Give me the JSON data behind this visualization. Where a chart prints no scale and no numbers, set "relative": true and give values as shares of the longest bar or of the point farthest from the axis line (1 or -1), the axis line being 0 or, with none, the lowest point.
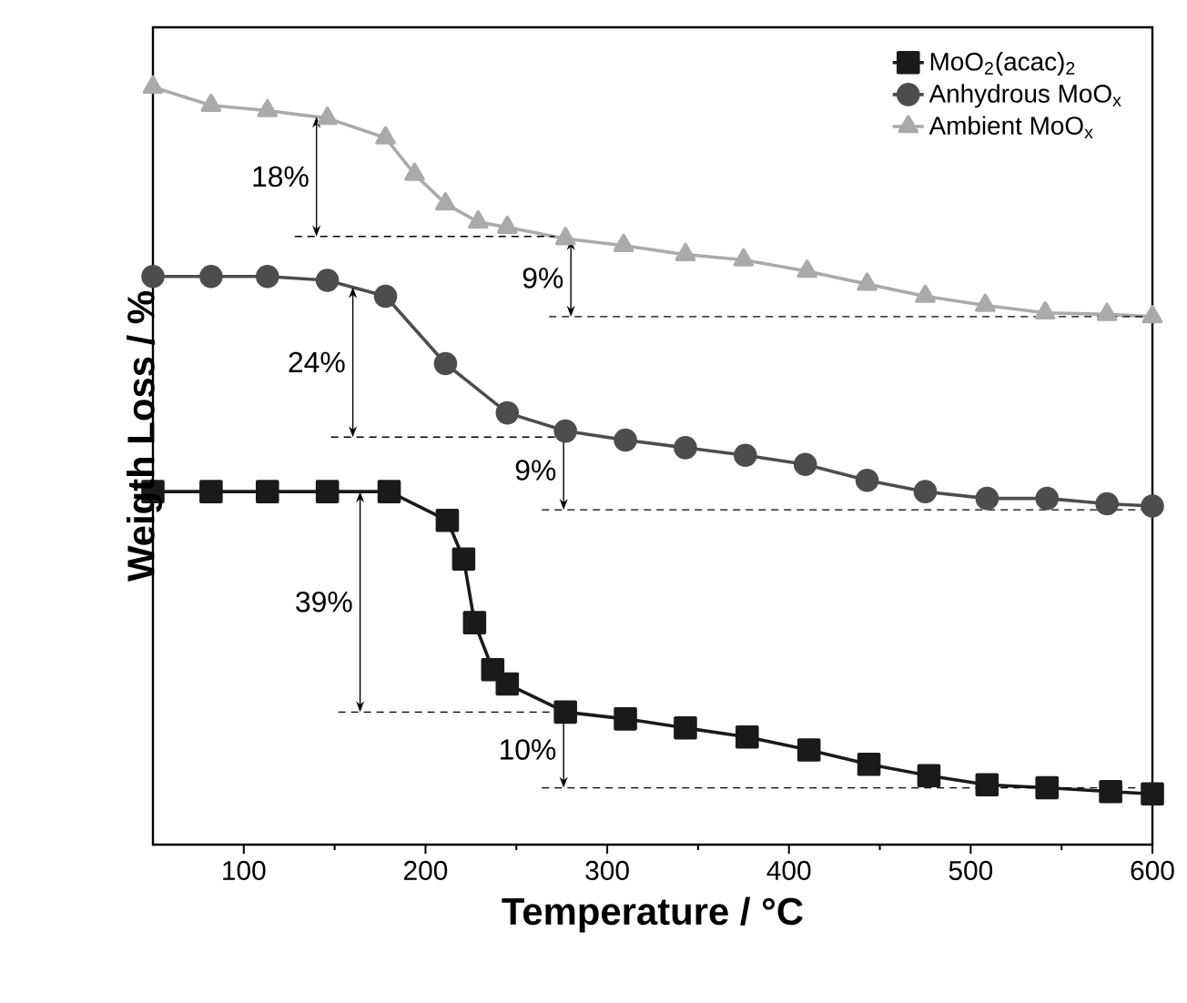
{
  "chart_data": {
    "type": "line",
    "relative": true,
    "xlabel": "Temperature / °C",
    "ylabel": "Weigth Loss / %",
    "xlim": [
      50,
      600
    ],
    "xticks": [
      100,
      200,
      300,
      400,
      500,
      600
    ],
    "legend": "top right",
    "grid": false,
    "series": [
      {
        "name": "MoO$_{2}$(acac)$_{2}$",
        "color": "#1a1a1a",
        "marker": "square",
        "line_style": "solid",
        "x": [
          50,
          82,
          113,
          146,
          180,
          212,
          221,
          227,
          237,
          245,
          277,
          310,
          343,
          377,
          411,
          444,
          477,
          509,
          542,
          577,
          600
        ],
        "values": [
          0.466,
          0.466,
          0.466,
          0.466,
          0.466,
          0.428,
          0.377,
          0.293,
          0.231,
          0.212,
          0.175,
          0.166,
          0.154,
          0.142,
          0.125,
          0.106,
          0.091,
          0.079,
          0.075,
          0.07,
          0.067
        ]
      },
      {
        "name": "Anhydrous MoO$_{x}$",
        "color": "#4d4d4d",
        "marker": "circle",
        "line_style": "solid",
        "x": [
          50,
          82,
          113,
          146,
          178,
          211,
          245,
          277,
          310,
          343,
          376,
          409,
          443,
          475,
          509,
          542,
          575,
          600
        ],
        "values": [
          0.75,
          0.75,
          0.75,
          0.745,
          0.724,
          0.635,
          0.57,
          0.546,
          0.534,
          0.524,
          0.514,
          0.502,
          0.481,
          0.466,
          0.457,
          0.457,
          0.45,
          0.447
        ]
      },
      {
        "name": "Ambient MoO$_{x}$",
        "color": "#aaaaaa",
        "marker": "triangle",
        "line_style": "solid",
        "x": [
          50,
          82,
          113,
          146,
          178,
          194,
          211,
          229,
          245,
          277,
          309,
          343,
          375,
          410,
          443,
          475,
          508,
          541,
          575,
          600
        ],
        "values": [
          1.0,
          0.976,
          0.969,
          0.959,
          0.933,
          0.885,
          0.846,
          0.822,
          0.815,
          0.8,
          0.791,
          0.779,
          0.772,
          0.757,
          0.74,
          0.724,
          0.712,
          0.702,
          0.7,
          0.697
        ]
      },
      {
        "color": "#000000",
        "line_style": "dashed",
        "x": [
          128,
          271
        ],
        "values": [
          0.803,
          0.803
        ]
      },
      {
        "color": "#000000",
        "line_style": "dashed",
        "x": [
          268,
          600
        ],
        "values": [
          0.697,
          0.697
        ]
      },
      {
        "color": "#000000",
        "line_style": "dashed",
        "x": [
          148,
          275
        ],
        "values": [
          0.538,
          0.538
        ]
      },
      {
        "color": "#000000",
        "line_style": "dashed",
        "x": [
          264,
          600
        ],
        "values": [
          0.442,
          0.442
        ]
      },
      {
        "color": "#000000",
        "line_style": "dashed",
        "x": [
          152,
          271
        ],
        "values": [
          0.175,
          0.175
        ]
      },
      {
        "color": "#000000",
        "line_style": "dashed",
        "x": [
          264,
          600
        ],
        "values": [
          0.075,
          0.075
        ]
      }
    ],
    "annotations": [
      "18%",
      "9%",
      "24%",
      "9%",
      "39%",
      "10%"
    ]
  }
}
